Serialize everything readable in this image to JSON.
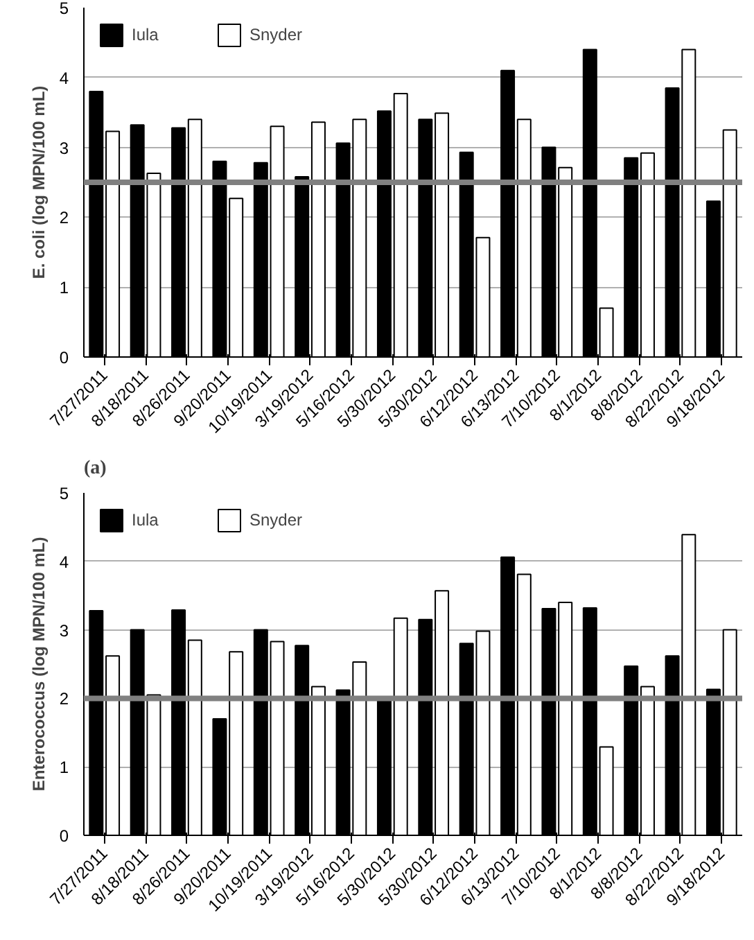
{
  "chart_data": [
    {
      "type": "bar",
      "ylabel": "E. coli (log MPN/100 mL)",
      "annotations": [
        "(a)"
      ],
      "categories": [
        "7/27/2011",
        "8/18/2011",
        "8/26/2011",
        "9/20/2011",
        "10/19/2011",
        "3/19/2012",
        "5/16/2012",
        "5/30/2012",
        "5/30/2012",
        "6/12/2012",
        "6/13/2012",
        "7/10/2012",
        "8/1/2012",
        "8/8/2012",
        "8/22/2012",
        "9/18/2012"
      ],
      "series": [
        {
          "name": "Iula",
          "color": "#000000",
          "values": [
            3.8,
            3.32,
            3.28,
            2.8,
            2.78,
            2.58,
            3.06,
            3.52,
            3.4,
            2.93,
            4.1,
            3.0,
            4.4,
            2.85,
            3.85,
            2.23
          ]
        },
        {
          "name": "Snyder",
          "color": "#ffffff",
          "values": [
            3.23,
            2.63,
            3.4,
            2.27,
            3.3,
            3.36,
            3.4,
            3.77,
            3.49,
            1.71,
            3.4,
            2.71,
            0.7,
            2.92,
            4.4,
            3.25
          ]
        }
      ],
      "ylim": [
        0,
        5
      ],
      "yticks": [
        0,
        1,
        2,
        3,
        4,
        5
      ],
      "grid": "y",
      "legend": "top left",
      "ref_lines": [
        {
          "axis": "y",
          "value": 2.5,
          "color": "#808080"
        }
      ]
    },
    {
      "type": "bar",
      "ylabel": "Enterococcus (log MPN/100 mL)",
      "categories": [
        "7/27/2011",
        "8/18/2011",
        "8/26/2011",
        "9/20/2011",
        "10/19/2011",
        "3/19/2012",
        "5/16/2012",
        "5/30/2012",
        "5/30/2012",
        "6/12/2012",
        "6/13/2012",
        "7/10/2012",
        "8/1/2012",
        "8/8/2012",
        "8/22/2012",
        "9/18/2012"
      ],
      "series": [
        {
          "name": "Iula",
          "color": "#000000",
          "values": [
            3.28,
            3.0,
            3.29,
            1.7,
            3.0,
            2.77,
            2.12,
            2.02,
            3.15,
            2.8,
            4.06,
            3.31,
            3.32,
            2.47,
            2.62,
            2.13
          ]
        },
        {
          "name": "Snyder",
          "color": "#ffffff",
          "values": [
            2.62,
            2.05,
            2.85,
            2.68,
            2.83,
            2.17,
            2.53,
            3.17,
            3.57,
            2.98,
            3.81,
            3.4,
            1.29,
            2.17,
            4.39,
            3.0
          ]
        }
      ],
      "ylim": [
        0,
        5
      ],
      "yticks": [
        0,
        1,
        2,
        3,
        4,
        5
      ],
      "grid": "y",
      "legend": "top left",
      "ref_lines": [
        {
          "axis": "y",
          "value": 2.0,
          "color": "#808080"
        }
      ]
    }
  ]
}
